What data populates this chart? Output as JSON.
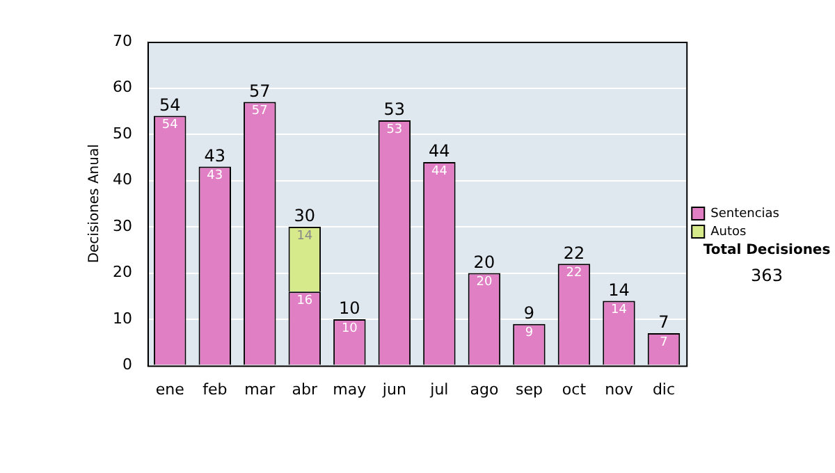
{
  "chart_data": {
    "type": "bar",
    "stacked": true,
    "ylabel": "Decisiones Anual",
    "categories": [
      "ene",
      "feb",
      "mar",
      "abr",
      "may",
      "jun",
      "jul",
      "ago",
      "sep",
      "oct",
      "nov",
      "dic"
    ],
    "series": [
      {
        "name": "Sentencias",
        "color": "#e07fc4",
        "values": [
          54,
          43,
          57,
          16,
          10,
          53,
          44,
          20,
          9,
          22,
          14,
          7
        ]
      },
      {
        "name": "Autos",
        "color": "#d6ea8c",
        "values": [
          null,
          null,
          null,
          14,
          null,
          null,
          null,
          null,
          null,
          null,
          null,
          null
        ]
      }
    ],
    "totals": [
      "54",
      "43",
      "57",
      "30",
      "10",
      "53",
      "44",
      "20",
      "9",
      "22",
      "14",
      "7"
    ],
    "data_labels": true,
    "ylim": [
      0,
      70
    ],
    "yticks": [
      0,
      10,
      20,
      30,
      40,
      50,
      60,
      70
    ],
    "grid": "y",
    "legend": "right",
    "annotations": [
      "Total Decisiones",
      "363"
    ]
  }
}
